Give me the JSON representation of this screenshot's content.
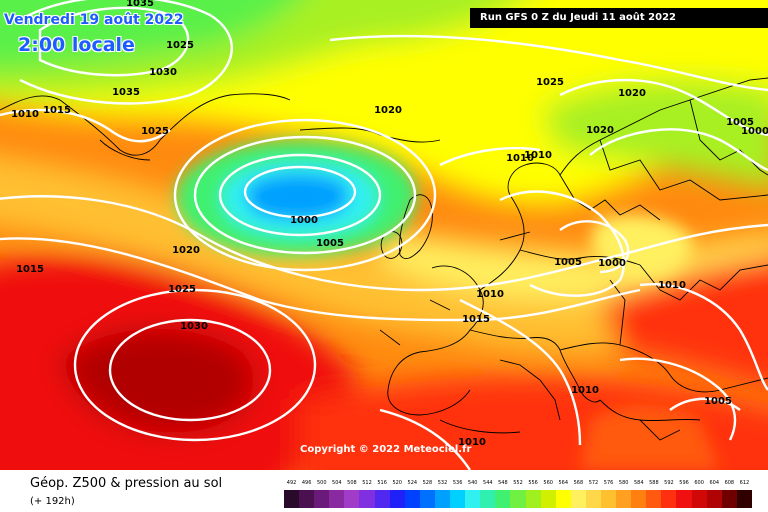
{
  "header": {
    "date": "Vendredi 19 août 2022",
    "local_time": "2:00 locale",
    "run_info": "Run GFS 0 Z du Jeudi 11 août 2022"
  },
  "map": {
    "copyright": "Copyright © 2022 Meteociel.fr",
    "isobar_color": "#ffffff",
    "coast_color": "#000000",
    "pressure_labels": [
      {
        "id": "p1",
        "text": "1035"
      },
      {
        "id": "p2",
        "text": "1025"
      },
      {
        "id": "p3",
        "text": "1030"
      },
      {
        "id": "p4",
        "text": "1035"
      },
      {
        "id": "p5",
        "text": "1015"
      },
      {
        "id": "p6",
        "text": "1010"
      },
      {
        "id": "p7",
        "text": "1025"
      },
      {
        "id": "p8",
        "text": "1020"
      },
      {
        "id": "p9",
        "text": "1025"
      },
      {
        "id": "p10",
        "text": "1020"
      },
      {
        "id": "p11",
        "text": "1020"
      },
      {
        "id": "p12",
        "text": "1005"
      },
      {
        "id": "p13",
        "text": "1000"
      },
      {
        "id": "p14",
        "text": "1010"
      },
      {
        "id": "p15",
        "text": "1010"
      },
      {
        "id": "p16",
        "text": "1000"
      },
      {
        "id": "p17",
        "text": "1005"
      },
      {
        "id": "p18",
        "text": "1020"
      },
      {
        "id": "p19",
        "text": "1015"
      },
      {
        "id": "p20",
        "text": "1025"
      },
      {
        "id": "p21",
        "text": "1005"
      },
      {
        "id": "p22",
        "text": "1000"
      },
      {
        "id": "p23",
        "text": "1010"
      },
      {
        "id": "p24",
        "text": "1010"
      },
      {
        "id": "p25",
        "text": "1030"
      },
      {
        "id": "p26",
        "text": "1015"
      },
      {
        "id": "p27",
        "text": "1010"
      },
      {
        "id": "p28",
        "text": "1005"
      },
      {
        "id": "p29",
        "text": "1010"
      }
    ]
  },
  "legend": {
    "title": "Géop. Z500 & pression au sol",
    "subtitle": "(+ 192h)",
    "scale": [
      {
        "label": "492",
        "color": "#2a0a2a"
      },
      {
        "label": "496",
        "color": "#4a1050"
      },
      {
        "label": "500",
        "color": "#6a1a78"
      },
      {
        "label": "504",
        "color": "#8a2aa0"
      },
      {
        "label": "508",
        "color": "#a03cc8"
      },
      {
        "label": "512",
        "color": "#8030e0"
      },
      {
        "label": "516",
        "color": "#5028f0"
      },
      {
        "label": "520",
        "color": "#2020f8"
      },
      {
        "label": "524",
        "color": "#0040ff"
      },
      {
        "label": "528",
        "color": "#0070ff"
      },
      {
        "label": "532",
        "color": "#00a0ff"
      },
      {
        "label": "536",
        "color": "#00d0ff"
      },
      {
        "label": "540",
        "color": "#30f0f0"
      },
      {
        "label": "544",
        "color": "#30f0b0"
      },
      {
        "label": "548",
        "color": "#40f070"
      },
      {
        "label": "552",
        "color": "#70f040"
      },
      {
        "label": "556",
        "color": "#a0f020"
      },
      {
        "label": "560",
        "color": "#d0f000"
      },
      {
        "label": "564",
        "color": "#ffff00"
      },
      {
        "label": "568",
        "color": "#fff060"
      },
      {
        "label": "572",
        "color": "#ffd84a"
      },
      {
        "label": "576",
        "color": "#ffc030"
      },
      {
        "label": "580",
        "color": "#ffa020"
      },
      {
        "label": "584",
        "color": "#ff8010"
      },
      {
        "label": "588",
        "color": "#ff5a10"
      },
      {
        "label": "592",
        "color": "#ff3010"
      },
      {
        "label": "596",
        "color": "#f01010"
      },
      {
        "label": "600",
        "color": "#d00808"
      },
      {
        "label": "604",
        "color": "#b00404"
      },
      {
        "label": "608",
        "color": "#700000"
      },
      {
        "label": "612",
        "color": "#300000"
      }
    ]
  }
}
